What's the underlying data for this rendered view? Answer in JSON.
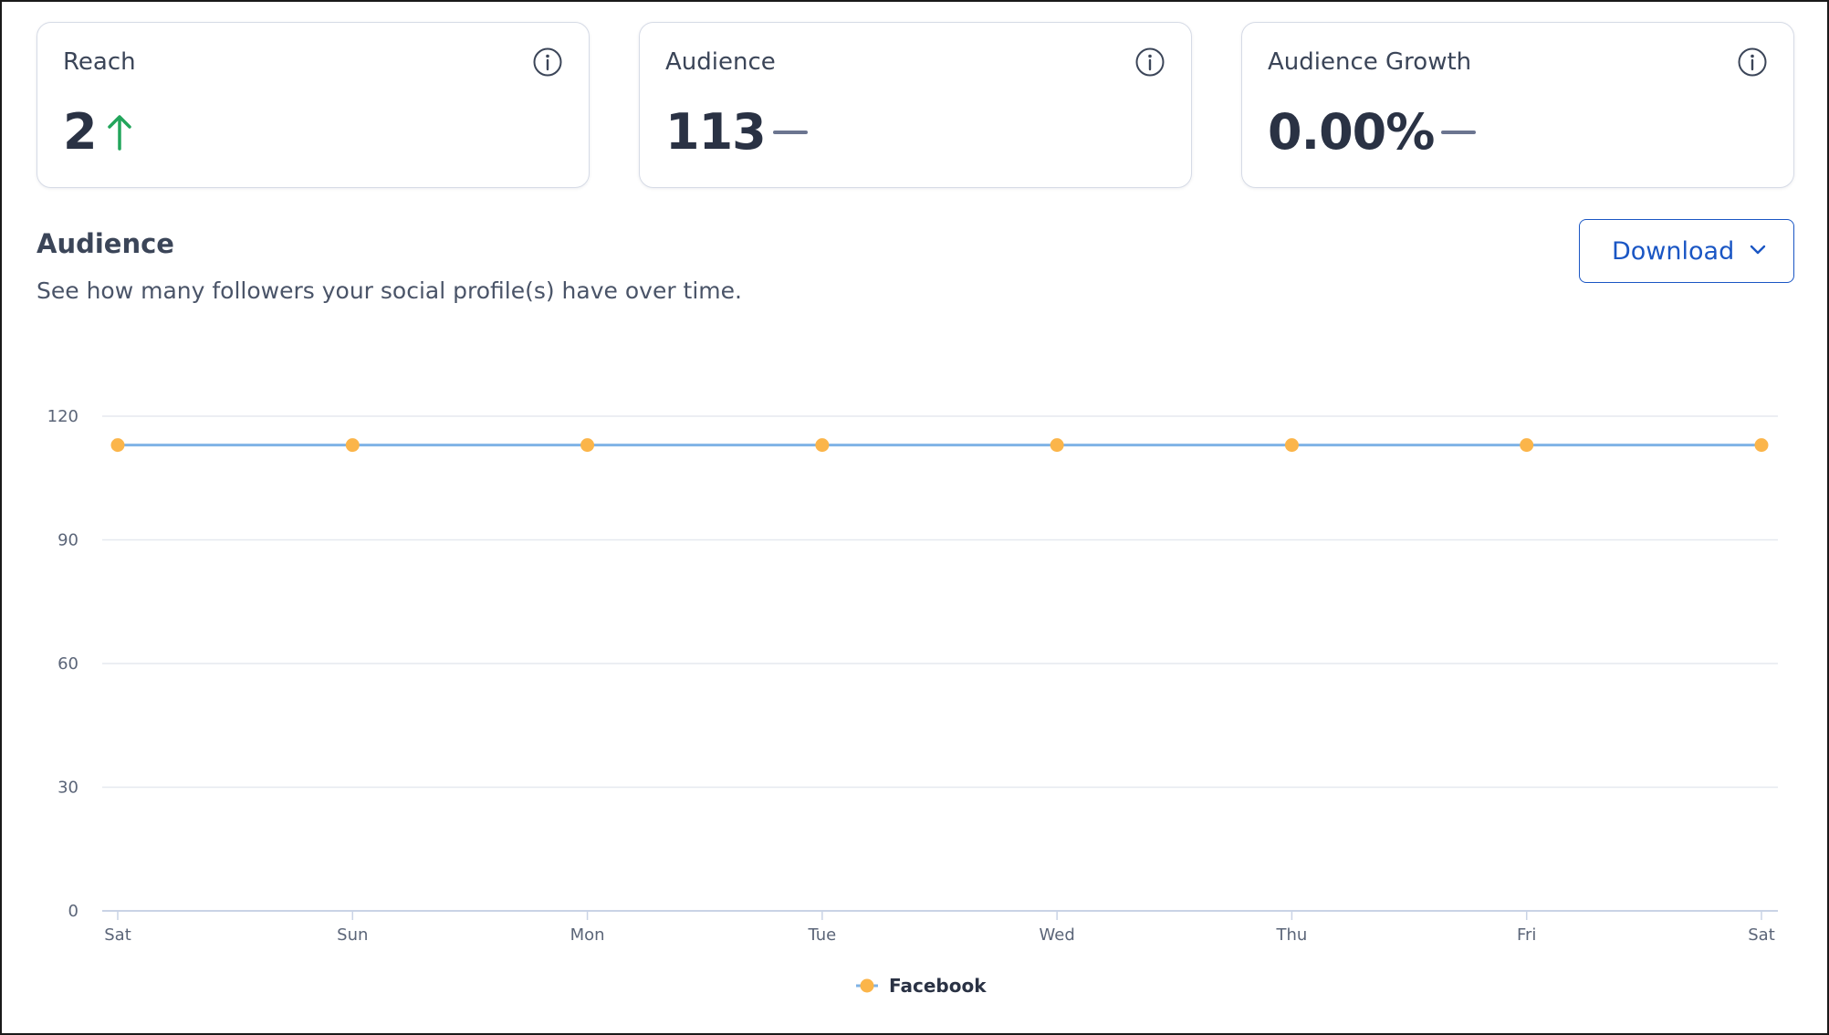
{
  "cards": [
    {
      "title": "Reach",
      "value": "2",
      "trend": "up",
      "icon": "info-icon"
    },
    {
      "title": "Audience",
      "value": "113",
      "trend": "flat",
      "icon": "info-icon"
    },
    {
      "title": "Audience Growth",
      "value": "0.00%",
      "trend": "flat",
      "icon": "info-icon"
    }
  ],
  "section": {
    "title": "Audience",
    "description": "See how many followers your social profile(s) have over time."
  },
  "download": {
    "label": "Download",
    "icon": "chevron-down-icon"
  },
  "colors": {
    "trend_up": "#22a55b",
    "trend_flat": "#6b7590",
    "line": "#7fb3e6",
    "point": "#fbb54a",
    "accent": "#1a56c4"
  },
  "chart_data": {
    "type": "line",
    "categories": [
      "Sat",
      "Sun",
      "Mon",
      "Tue",
      "Wed",
      "Thu",
      "Fri",
      "Sat"
    ],
    "series": [
      {
        "name": "Facebook",
        "values": [
          113,
          113,
          113,
          113,
          113,
          113,
          113,
          113
        ]
      }
    ],
    "yticks": [
      0,
      30,
      60,
      90,
      120
    ],
    "ylim": [
      0,
      120
    ],
    "grid": true,
    "legend": "bottom-center"
  }
}
